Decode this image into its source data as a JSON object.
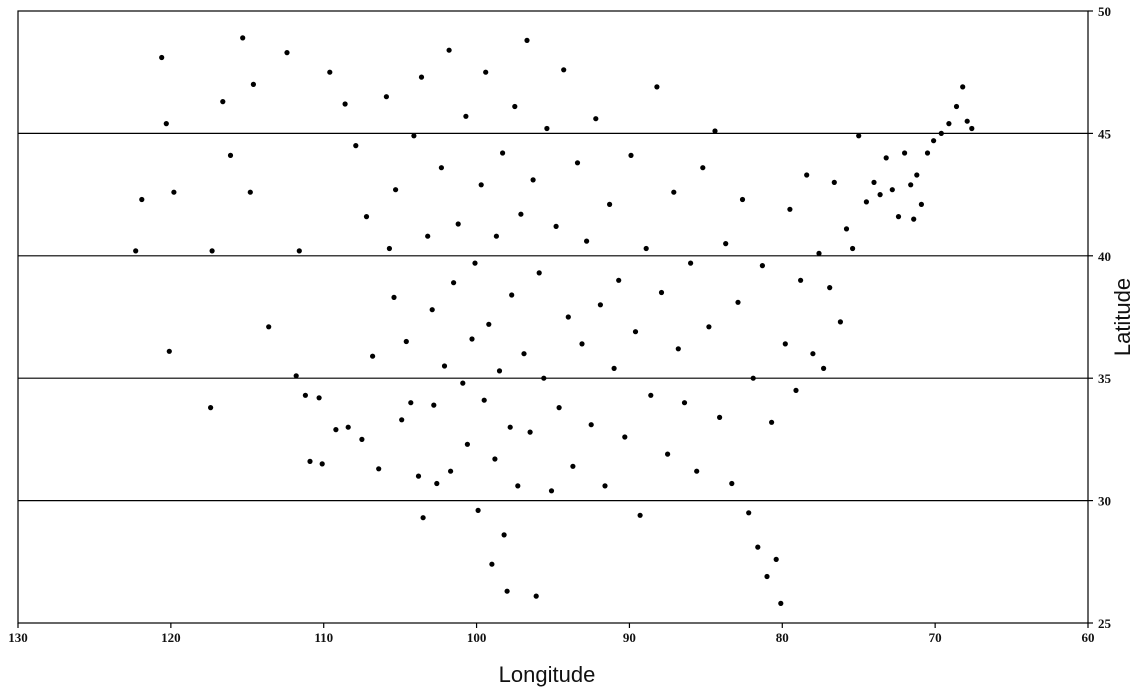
{
  "chart_data": {
    "type": "scatter",
    "title": "",
    "xlabel": "Longitude",
    "ylabel": "Latitude",
    "xlim": [
      130,
      60
    ],
    "ylim": [
      25,
      50
    ],
    "x_reversed": true,
    "xticks": [
      130,
      120,
      110,
      100,
      90,
      80,
      70,
      60
    ],
    "yticks": [
      25,
      30,
      35,
      40,
      45,
      50
    ],
    "y_axis_side": "right",
    "grid": "horizontal lines at 30, 35, 40, 45",
    "point_color": "#000000",
    "series": [
      {
        "points": [
          [
            122.3,
            40.2
          ],
          [
            121.9,
            42.3
          ],
          [
            120.6,
            48.1
          ],
          [
            120.3,
            45.4
          ],
          [
            119.8,
            42.6
          ],
          [
            120.1,
            36.1
          ],
          [
            117.3,
            40.2
          ],
          [
            117.4,
            33.8
          ],
          [
            116.6,
            46.3
          ],
          [
            116.1,
            44.1
          ],
          [
            115.3,
            48.9
          ],
          [
            114.8,
            42.6
          ],
          [
            114.6,
            47.0
          ],
          [
            113.6,
            37.1
          ],
          [
            112.4,
            48.3
          ],
          [
            111.8,
            35.1
          ],
          [
            111.6,
            40.2
          ],
          [
            111.2,
            34.3
          ],
          [
            110.9,
            31.6
          ],
          [
            110.3,
            34.2
          ],
          [
            110.1,
            31.5
          ],
          [
            109.6,
            47.5
          ],
          [
            109.2,
            32.9
          ],
          [
            108.6,
            46.2
          ],
          [
            108.4,
            33.0
          ],
          [
            107.9,
            44.5
          ],
          [
            107.5,
            32.5
          ],
          [
            107.2,
            41.6
          ],
          [
            106.8,
            35.9
          ],
          [
            106.4,
            31.3
          ],
          [
            105.9,
            46.5
          ],
          [
            105.7,
            40.3
          ],
          [
            105.4,
            38.3
          ],
          [
            105.3,
            42.7
          ],
          [
            104.9,
            33.3
          ],
          [
            104.6,
            36.5
          ],
          [
            104.3,
            34.0
          ],
          [
            104.1,
            44.9
          ],
          [
            103.8,
            31.0
          ],
          [
            103.6,
            47.3
          ],
          [
            103.5,
            29.3
          ],
          [
            103.2,
            40.8
          ],
          [
            102.9,
            37.8
          ],
          [
            102.8,
            33.9
          ],
          [
            102.6,
            30.7
          ],
          [
            102.3,
            43.6
          ],
          [
            102.1,
            35.5
          ],
          [
            101.8,
            48.4
          ],
          [
            101.7,
            31.2
          ],
          [
            101.5,
            38.9
          ],
          [
            101.2,
            41.3
          ],
          [
            100.9,
            34.8
          ],
          [
            100.7,
            45.7
          ],
          [
            100.6,
            32.3
          ],
          [
            100.3,
            36.6
          ],
          [
            100.1,
            39.7
          ],
          [
            99.9,
            29.6
          ],
          [
            99.7,
            42.9
          ],
          [
            99.5,
            34.1
          ],
          [
            99.4,
            47.5
          ],
          [
            99.2,
            37.2
          ],
          [
            99.0,
            27.4
          ],
          [
            98.8,
            31.7
          ],
          [
            98.7,
            40.8
          ],
          [
            98.5,
            35.3
          ],
          [
            98.3,
            44.2
          ],
          [
            98.2,
            28.6
          ],
          [
            98.0,
            26.3
          ],
          [
            97.8,
            33.0
          ],
          [
            97.7,
            38.4
          ],
          [
            97.5,
            46.1
          ],
          [
            97.3,
            30.6
          ],
          [
            97.1,
            41.7
          ],
          [
            96.9,
            36.0
          ],
          [
            96.7,
            48.8
          ],
          [
            96.5,
            32.8
          ],
          [
            96.3,
            43.1
          ],
          [
            96.1,
            26.1
          ],
          [
            95.9,
            39.3
          ],
          [
            95.6,
            35.0
          ],
          [
            95.4,
            45.2
          ],
          [
            95.1,
            30.4
          ],
          [
            94.8,
            41.2
          ],
          [
            94.6,
            33.8
          ],
          [
            94.3,
            47.6
          ],
          [
            94.0,
            37.5
          ],
          [
            93.7,
            31.4
          ],
          [
            93.4,
            43.8
          ],
          [
            93.1,
            36.4
          ],
          [
            92.8,
            40.6
          ],
          [
            92.5,
            33.1
          ],
          [
            92.2,
            45.6
          ],
          [
            91.9,
            38.0
          ],
          [
            91.6,
            30.6
          ],
          [
            91.3,
            42.1
          ],
          [
            91.0,
            35.4
          ],
          [
            90.7,
            39.0
          ],
          [
            90.3,
            32.6
          ],
          [
            89.9,
            44.1
          ],
          [
            89.6,
            36.9
          ],
          [
            89.3,
            29.4
          ],
          [
            88.9,
            40.3
          ],
          [
            88.6,
            34.3
          ],
          [
            88.2,
            46.9
          ],
          [
            87.9,
            38.5
          ],
          [
            87.5,
            31.9
          ],
          [
            87.1,
            42.6
          ],
          [
            86.8,
            36.2
          ],
          [
            86.4,
            34.0
          ],
          [
            86.0,
            39.7
          ],
          [
            85.6,
            31.2
          ],
          [
            85.2,
            43.6
          ],
          [
            84.8,
            37.1
          ],
          [
            84.4,
            45.1
          ],
          [
            84.1,
            33.4
          ],
          [
            83.7,
            40.5
          ],
          [
            83.3,
            30.7
          ],
          [
            82.9,
            38.1
          ],
          [
            82.6,
            42.3
          ],
          [
            82.2,
            29.5
          ],
          [
            81.9,
            35.0
          ],
          [
            81.6,
            28.1
          ],
          [
            81.3,
            39.6
          ],
          [
            81.0,
            26.9
          ],
          [
            80.7,
            33.2
          ],
          [
            80.4,
            27.6
          ],
          [
            80.1,
            25.8
          ],
          [
            79.8,
            36.4
          ],
          [
            79.5,
            41.9
          ],
          [
            79.1,
            34.5
          ],
          [
            78.8,
            39.0
          ],
          [
            78.4,
            43.3
          ],
          [
            78.0,
            36.0
          ],
          [
            77.6,
            40.1
          ],
          [
            77.3,
            35.4
          ],
          [
            76.9,
            38.7
          ],
          [
            76.6,
            43.0
          ],
          [
            76.2,
            37.3
          ],
          [
            75.8,
            41.1
          ],
          [
            75.4,
            40.3
          ],
          [
            75.0,
            44.9
          ],
          [
            74.5,
            42.2
          ],
          [
            74.0,
            43.0
          ],
          [
            73.6,
            42.5
          ],
          [
            73.2,
            44.0
          ],
          [
            72.8,
            42.7
          ],
          [
            72.4,
            41.6
          ],
          [
            72.0,
            44.2
          ],
          [
            71.6,
            42.9
          ],
          [
            71.2,
            43.3
          ],
          [
            70.9,
            42.1
          ],
          [
            70.5,
            44.2
          ],
          [
            70.1,
            44.7
          ],
          [
            69.6,
            45.0
          ],
          [
            69.1,
            45.4
          ],
          [
            68.6,
            46.1
          ],
          [
            68.2,
            46.9
          ],
          [
            67.6,
            45.2
          ],
          [
            67.9,
            45.5
          ],
          [
            71.4,
            41.5
          ]
        ]
      }
    ]
  }
}
